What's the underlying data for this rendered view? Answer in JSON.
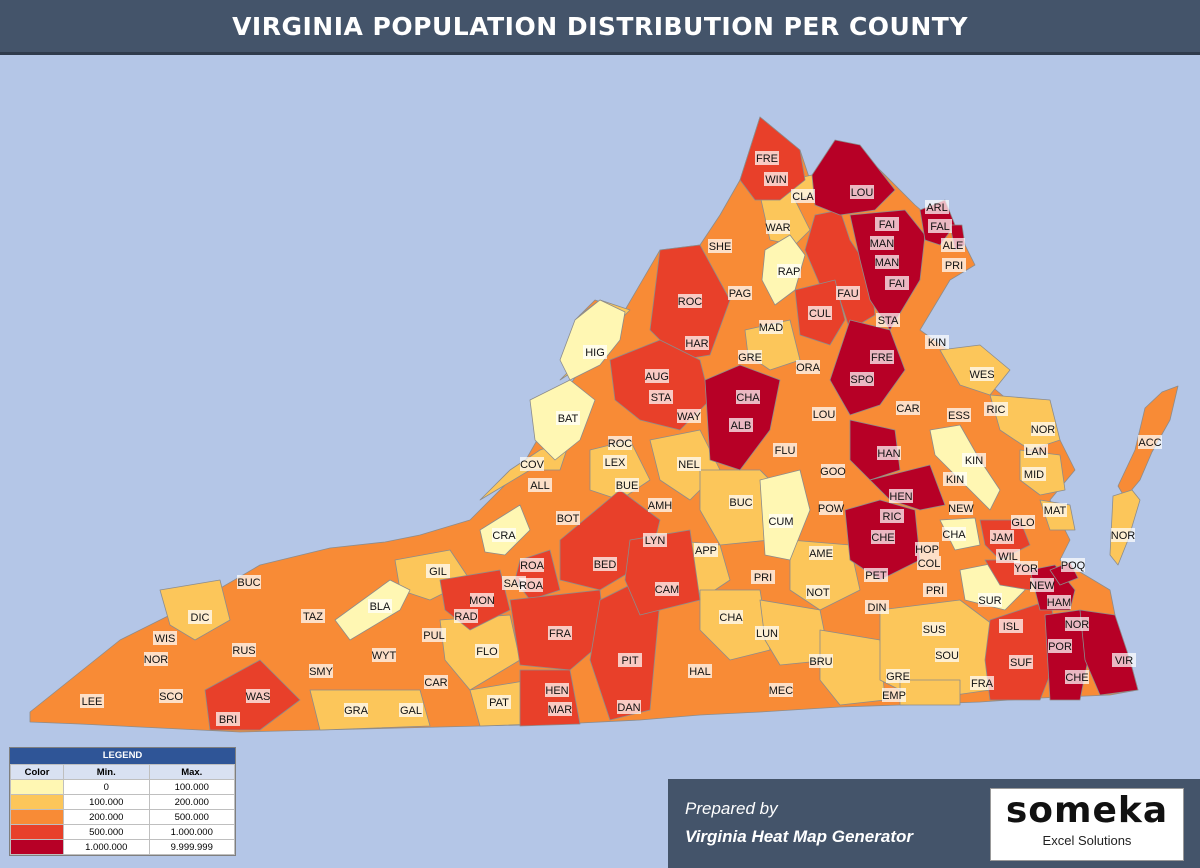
{
  "title": "VIRGINIA POPULATION DISTRIBUTION PER COUNTY",
  "colors": {
    "band1": "#fff7b3",
    "band2": "#fcc65a",
    "band3": "#f88b36",
    "band4": "#e8402a",
    "band5": "#b70026",
    "background": "#b4c6e7",
    "header": "#44546a"
  },
  "legend": {
    "title": "LEGEND",
    "col_color": "Color",
    "col_min": "Min.",
    "col_max": "Max.",
    "rows": [
      {
        "min": "0",
        "max": "100.000"
      },
      {
        "min": "100.000",
        "max": "200.000"
      },
      {
        "min": "200.000",
        "max": "500.000"
      },
      {
        "min": "500.000",
        "max": "1.000.000"
      },
      {
        "min": "1.000.000",
        "max": "9.999.999"
      }
    ]
  },
  "prepared": {
    "line1": "Prepared by",
    "line2": "Virginia Heat Map Generator"
  },
  "logo": {
    "name": "someka",
    "tagline": "Excel Solutions"
  },
  "counties": [
    {
      "code": "FRE",
      "band": 4
    },
    {
      "code": "WIN",
      "band": 4
    },
    {
      "code": "CLA",
      "band": 2
    },
    {
      "code": "LOU",
      "band": 5
    },
    {
      "code": "ARL",
      "band": 5
    },
    {
      "code": "FAL",
      "band": 5
    },
    {
      "code": "ALE",
      "band": 5
    },
    {
      "code": "PRI",
      "band": 3
    },
    {
      "code": "FAI",
      "band": 5
    },
    {
      "code": "MAN",
      "band": 5
    },
    {
      "code": "MAN",
      "band": 5
    },
    {
      "code": "FAI",
      "band": 5
    },
    {
      "code": "SHE",
      "band": 3
    },
    {
      "code": "WAR",
      "band": 3
    },
    {
      "code": "RAP",
      "band": 1
    },
    {
      "code": "PAG",
      "band": 3
    },
    {
      "code": "ROC",
      "band": 4
    },
    {
      "code": "FAU",
      "band": 4
    },
    {
      "code": "CUL",
      "band": 4
    },
    {
      "code": "STA",
      "band": 5
    },
    {
      "code": "MAD",
      "band": 2
    },
    {
      "code": "HAR",
      "band": 4
    },
    {
      "code": "HIG",
      "band": 1
    },
    {
      "code": "GRE",
      "band": 2
    },
    {
      "code": "FRE",
      "band": 5
    },
    {
      "code": "SPO",
      "band": 5
    },
    {
      "code": "KIN",
      "band": 2
    },
    {
      "code": "ORA",
      "band": 3
    },
    {
      "code": "AUG",
      "band": 4
    },
    {
      "code": "STA",
      "band": 4
    },
    {
      "code": "WES",
      "band": 2
    },
    {
      "code": "CHA",
      "band": 5
    },
    {
      "code": "CAR",
      "band": 3
    },
    {
      "code": "RIC",
      "band": 2
    },
    {
      "code": "BAT",
      "band": 1
    },
    {
      "code": "WAY",
      "band": 4
    },
    {
      "code": "ALB",
      "band": 5
    },
    {
      "code": "LOU",
      "band": 3
    },
    {
      "code": "ESS",
      "band": 2
    },
    {
      "code": "NOR",
      "band": 2
    },
    {
      "code": "ACC",
      "band": 3
    },
    {
      "code": "ROC",
      "band": 3
    },
    {
      "code": "LAN",
      "band": 2
    },
    {
      "code": "HAN",
      "band": 5
    },
    {
      "code": "KIN",
      "band": 1
    },
    {
      "code": "MID",
      "band": 2
    },
    {
      "code": "FLU",
      "band": 3
    },
    {
      "code": "COV",
      "band": 2
    },
    {
      "code": "LEX",
      "band": 2
    },
    {
      "code": "NEL",
      "band": 2
    },
    {
      "code": "GOO",
      "band": 3
    },
    {
      "code": "ALL",
      "band": 2
    },
    {
      "code": "BUE",
      "band": 2
    },
    {
      "code": "KIN",
      "band": 2
    },
    {
      "code": "HEN",
      "band": 5
    },
    {
      "code": "BUC",
      "band": 2
    },
    {
      "code": "MAT",
      "band": 2
    },
    {
      "code": "AMH",
      "band": 3
    },
    {
      "code": "NEW",
      "band": 3
    },
    {
      "code": "BOT",
      "band": 3
    },
    {
      "code": "POW",
      "band": 3
    },
    {
      "code": "RIC",
      "band": 5
    },
    {
      "code": "GLO",
      "band": 3
    },
    {
      "code": "CUM",
      "band": 1
    },
    {
      "code": "CRA",
      "band": 1
    },
    {
      "code": "CHE",
      "band": 5
    },
    {
      "code": "CHA",
      "band": 1
    },
    {
      "code": "NOR",
      "band": 2
    },
    {
      "code": "LYN",
      "band": 4
    },
    {
      "code": "JAM",
      "band": 4
    },
    {
      "code": "APP",
      "band": 2
    },
    {
      "code": "HOP",
      "band": 2
    },
    {
      "code": "AME",
      "band": 2
    },
    {
      "code": "WIL",
      "band": 4
    },
    {
      "code": "BED",
      "band": 4
    },
    {
      "code": "COL",
      "band": 2
    },
    {
      "code": "ROA",
      "band": 4
    },
    {
      "code": "YOR",
      "band": 4
    },
    {
      "code": "POQ",
      "band": 5
    },
    {
      "code": "GIL",
      "band": 2
    },
    {
      "code": "BUC",
      "band": 3
    },
    {
      "code": "SAL",
      "band": 4
    },
    {
      "code": "PRI",
      "band": 3
    },
    {
      "code": "PET",
      "band": 3
    },
    {
      "code": "NEW",
      "band": 5
    },
    {
      "code": "ROA",
      "band": 4
    },
    {
      "code": "CAM",
      "band": 4
    },
    {
      "code": "NOT",
      "band": 2
    },
    {
      "code": "PRI",
      "band": 3
    },
    {
      "code": "MON",
      "band": 4
    },
    {
      "code": "SUR",
      "band": 1
    },
    {
      "code": "HAM",
      "band": 5
    },
    {
      "code": "TAZ",
      "band": 3
    },
    {
      "code": "BLA",
      "band": 1
    },
    {
      "code": "DIN",
      "band": 3
    },
    {
      "code": "DIC",
      "band": 2
    },
    {
      "code": "RAD",
      "band": 4
    },
    {
      "code": "CHA",
      "band": 2
    },
    {
      "code": "NOR",
      "band": 5
    },
    {
      "code": "WIS",
      "band": 3
    },
    {
      "code": "PUL",
      "band": 3
    },
    {
      "code": "FRA",
      "band": 4
    },
    {
      "code": "ISL",
      "band": 3
    },
    {
      "code": "SUS",
      "band": 2
    },
    {
      "code": "LUN",
      "band": 2
    },
    {
      "code": "POR",
      "band": 5
    },
    {
      "code": "NOR",
      "band": 3
    },
    {
      "code": "RUS",
      "band": 3
    },
    {
      "code": "SMY",
      "band": 3
    },
    {
      "code": "WYT",
      "band": 3
    },
    {
      "code": "FLO",
      "band": 2
    },
    {
      "code": "PIT",
      "band": 4
    },
    {
      "code": "SOU",
      "band": 2
    },
    {
      "code": "VIR",
      "band": 5
    },
    {
      "code": "HAL",
      "band": 3
    },
    {
      "code": "SUF",
      "band": 4
    },
    {
      "code": "BRU",
      "band": 2
    },
    {
      "code": "GRE",
      "band": 2
    },
    {
      "code": "CAR",
      "band": 3
    },
    {
      "code": "CHE",
      "band": 5
    },
    {
      "code": "FRA",
      "band": 2
    },
    {
      "code": "SCO",
      "band": 3
    },
    {
      "code": "WAS",
      "band": 4
    },
    {
      "code": "MEC",
      "band": 3
    },
    {
      "code": "EMP",
      "band": 2
    },
    {
      "code": "LEE",
      "band": 3
    },
    {
      "code": "HEN",
      "band": 3
    },
    {
      "code": "GRA",
      "band": 2
    },
    {
      "code": "GAL",
      "band": 2
    },
    {
      "code": "PAT",
      "band": 2
    },
    {
      "code": "MAR",
      "band": 4
    },
    {
      "code": "DAN",
      "band": 4
    },
    {
      "code": "BRI",
      "band": 4
    }
  ]
}
